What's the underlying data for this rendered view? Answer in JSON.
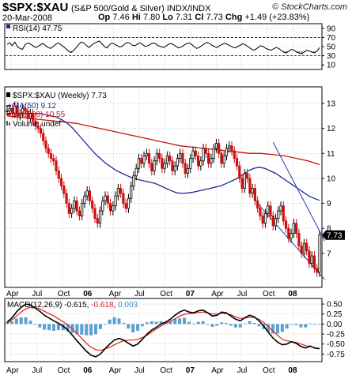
{
  "header": {
    "symbol": "$SPX:$XAU",
    "description": "(S&P 500/Gold & Silver) INDX/INDX",
    "date": "20-Mar-2008",
    "open_label": "Op",
    "open": "7.46",
    "high_label": "Hi",
    "high": "7.80",
    "low_label": "Lo",
    "low": "7.31",
    "close_label": "Cl",
    "close": "7.73",
    "change_label": "Chg",
    "change": "+1.49 (+23.83%)",
    "logo": "© StockCharts.com"
  },
  "colors": {
    "price_up": "#000000",
    "price_down": "#cc1111",
    "ma50": "#1f2a9a",
    "ma200": "#cc1111",
    "macd_line": "#000000",
    "signal_line": "#e02020",
    "histogram": "#5aa0d0",
    "channel": "#2a3aa0",
    "rsi_line": "#000000",
    "rsi_fill": "#8080c8",
    "grid": "#cccccc"
  },
  "chart_data": [
    {
      "type": "line",
      "panel": "rsi",
      "legend": {
        "label": "RSI(14)",
        "value": "47.75"
      },
      "ylim": [
        0,
        100
      ],
      "y_ticks": [
        "90",
        "70",
        "50",
        "30",
        "10"
      ],
      "reference_lines": [
        70,
        30
      ],
      "grid": true,
      "x_ticks": [
        "Apr",
        "Jul",
        "Oct",
        "06",
        "Apr",
        "Jul",
        "Oct",
        "07",
        "Apr",
        "Jul",
        "Oct",
        "08"
      ],
      "values": [
        55,
        58,
        52,
        60,
        50,
        46,
        44,
        54,
        58,
        56,
        52,
        48,
        50,
        54,
        57,
        52,
        48,
        46,
        50,
        55,
        58,
        54,
        50,
        45,
        40,
        37,
        42,
        48,
        55,
        60,
        58,
        52,
        48,
        53,
        57,
        60,
        62,
        56,
        50,
        47,
        54,
        58,
        55,
        52,
        49,
        51,
        56,
        59,
        57,
        53,
        52,
        56,
        58,
        54,
        50,
        52,
        55,
        58,
        56,
        52,
        50,
        48,
        51,
        55,
        57,
        54,
        50,
        47,
        49,
        53,
        56,
        58,
        55,
        50,
        46,
        48,
        52,
        56,
        59,
        57,
        53,
        50,
        48,
        52,
        55,
        57,
        55,
        52,
        49,
        47,
        50,
        53,
        56,
        54,
        50,
        46,
        42,
        44,
        48,
        52,
        50,
        46,
        44,
        42,
        45,
        48,
        46,
        42,
        38,
        36,
        40,
        44,
        42,
        38,
        36,
        34,
        38,
        42,
        40,
        38,
        36,
        40,
        47.75
      ]
    },
    {
      "type": "candlestick",
      "panel": "price",
      "title": "$SPX:$XAU (Weekly) 7.73",
      "legend": [
        {
          "label": "$SPX:$XAU (Weekly)",
          "value": "7.73"
        },
        {
          "label": "MA(50)",
          "value": "9.12"
        },
        {
          "label": "MA(200)",
          "value": "10.55"
        },
        {
          "label": "Volume undef",
          "value": ""
        }
      ],
      "ylim": [
        5.7,
        13.6
      ],
      "y_ticks": [
        "13",
        "12",
        "11",
        "10",
        "9",
        "8",
        "7"
      ],
      "grid": true,
      "close": [
        12.7,
        12.8,
        12.6,
        12.9,
        12.5,
        12.6,
        12.8,
        12.7,
        12.4,
        12.6,
        12.3,
        12.1,
        12.0,
        11.8,
        11.5,
        11.2,
        11.0,
        10.8,
        10.7,
        10.3,
        10.0,
        9.7,
        9.4,
        9.0,
        8.6,
        8.8,
        9.1,
        8.7,
        8.5,
        9.0,
        9.3,
        9.5,
        9.1,
        8.8,
        8.4,
        8.2,
        8.7,
        9.1,
        9.3,
        9.0,
        8.7,
        8.9,
        9.3,
        9.6,
        9.4,
        9.0,
        8.8,
        9.2,
        9.7,
        10.1,
        10.4,
        10.8,
        10.6,
        10.9,
        11.0,
        10.6,
        10.3,
        10.7,
        11.0,
        10.8,
        10.4,
        10.6,
        10.9,
        10.7,
        10.3,
        10.5,
        10.8,
        11.0,
        10.6,
        10.2,
        10.4,
        10.8,
        11.1,
        10.9,
        10.5,
        10.7,
        11.2,
        11.0,
        10.6,
        10.8,
        11.2,
        11.4,
        11.0,
        10.6,
        10.9,
        11.2,
        11.3,
        11.1,
        10.8,
        10.5,
        10.0,
        9.6,
        10.2,
        10.0,
        9.4,
        9.6,
        9.1,
        8.8,
        8.5,
        8.2,
        8.6,
        8.9,
        8.5,
        8.1,
        8.4,
        8.7,
        8.9,
        8.3,
        8.0,
        7.6,
        7.8,
        8.2,
        7.8,
        7.3,
        7.0,
        7.4,
        7.1,
        6.6,
        6.9,
        6.4,
        6.24,
        7.73
      ],
      "ma50": [
        12.6,
        12.6,
        12.6,
        12.6,
        12.6,
        12.6,
        12.6,
        12.55,
        12.5,
        12.45,
        12.35,
        12.2,
        12.0,
        11.75,
        11.5,
        11.25,
        11.0,
        10.8,
        10.6,
        10.45,
        10.3,
        10.2,
        10.1,
        10.0,
        9.95,
        9.9,
        9.85,
        9.8,
        9.7,
        9.6,
        9.5,
        9.42,
        9.4,
        9.42,
        9.45,
        9.5,
        9.55,
        9.6,
        9.65,
        9.7,
        9.8,
        9.9,
        10.0,
        10.15,
        10.3,
        10.4,
        10.45,
        10.4,
        10.3,
        10.2,
        10.05,
        9.9,
        9.75,
        9.6,
        9.45,
        9.3,
        9.2,
        9.12
      ],
      "ma200": [
        12.5,
        12.45,
        12.4,
        12.35,
        12.3,
        12.25,
        12.2,
        12.1,
        12.0,
        11.9,
        11.8,
        11.7,
        11.6,
        11.5,
        11.4,
        11.3,
        11.25,
        11.2,
        11.15,
        11.1,
        11.05,
        11.0,
        11.0,
        10.95,
        10.9,
        10.8,
        10.7,
        10.55
      ],
      "channel_upper": [
        [
          103,
          11.45
        ],
        [
          123,
          7.5
        ]
      ],
      "channel_lower": [
        [
          97,
          9.0
        ],
        [
          123,
          5.95
        ]
      ],
      "last_close_tag": "7.73"
    },
    {
      "type": "line",
      "panel": "macd",
      "legend": [
        {
          "label": "MACD(12,26,9)",
          "value": "-0.615"
        },
        {
          "label": "",
          "value": "-0.618"
        },
        {
          "label": "",
          "value": "0.003"
        }
      ],
      "ylim": [
        -0.9,
        0.6
      ],
      "y_ticks": [
        "0.50",
        "0.25",
        "0.00",
        "-0.25",
        "-0.50",
        "-0.75"
      ],
      "grid": true,
      "macd": [
        0.05,
        0.15,
        0.3,
        0.42,
        0.5,
        0.48,
        0.4,
        0.32,
        0.22,
        0.15,
        0.08,
        0.02,
        -0.05,
        -0.15,
        -0.28,
        -0.42,
        -0.55,
        -0.68,
        -0.78,
        -0.82,
        -0.75,
        -0.62,
        -0.5,
        -0.4,
        -0.36,
        -0.4,
        -0.48,
        -0.55,
        -0.5,
        -0.38,
        -0.25,
        -0.15,
        -0.08,
        0.0,
        0.05,
        0.12,
        0.22,
        0.3,
        0.35,
        0.3,
        0.28,
        0.33,
        0.35,
        0.28,
        0.2,
        0.22,
        0.3,
        0.28,
        0.2,
        0.12,
        0.08,
        0.16,
        0.22,
        0.18,
        0.08,
        -0.05,
        -0.2,
        -0.35,
        -0.45,
        -0.52,
        -0.5,
        -0.44,
        -0.48,
        -0.56,
        -0.6,
        -0.55,
        -0.6,
        -0.615
      ],
      "signal": [
        0.02,
        0.1,
        0.2,
        0.3,
        0.38,
        0.42,
        0.41,
        0.38,
        0.32,
        0.26,
        0.2,
        0.13,
        0.06,
        -0.02,
        -0.12,
        -0.24,
        -0.36,
        -0.48,
        -0.58,
        -0.64,
        -0.66,
        -0.62,
        -0.58,
        -0.52,
        -0.46,
        -0.42,
        -0.4,
        -0.4,
        -0.38,
        -0.34,
        -0.28,
        -0.2,
        -0.12,
        -0.05,
        0.01,
        0.07,
        0.13,
        0.2,
        0.24,
        0.26,
        0.27,
        0.29,
        0.3,
        0.28,
        0.25,
        0.25,
        0.27,
        0.26,
        0.23,
        0.18,
        0.14,
        0.15,
        0.17,
        0.16,
        0.12,
        0.04,
        -0.06,
        -0.18,
        -0.28,
        -0.38,
        -0.42,
        -0.44,
        -0.46,
        -0.5,
        -0.54,
        -0.56,
        -0.59,
        -0.618
      ],
      "histogram_last": 0.003
    }
  ]
}
